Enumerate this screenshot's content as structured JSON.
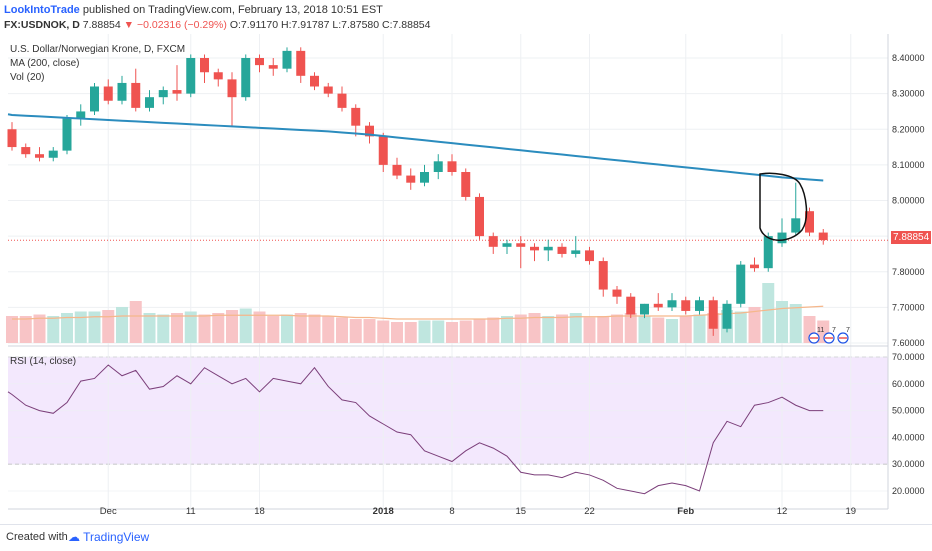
{
  "header": {
    "publisher": "LookIntoTrade",
    "published_text": "published on TradingView.com, February 13, 2018 10:51 EST",
    "symbol": "FX:USDNOK, D",
    "last": "7.88854",
    "change": "−0.02316 (−0.29%)",
    "open": "O:7.91170",
    "high": "H:7.91787",
    "low": "L:7.87580",
    "close": "C:7.88854"
  },
  "legend": {
    "instrument": "U.S. Dollar/Norwegian Krone, D, FXCM",
    "ma": "MA (200, close)",
    "vol": "Vol (20)",
    "rsi": "RSI (14, close)"
  },
  "price_badge": "7.88854",
  "footer": {
    "created_with": "Created with",
    "brand": "TradingView"
  },
  "colors": {
    "up": "#26a69a",
    "down": "#ef5350",
    "ma": "#2b8cbe",
    "rsi": "#7b3f7a",
    "rsi_band": "#f3e8fd"
  },
  "chart_data": [
    {
      "type": "candlestick",
      "title": "U.S. Dollar/Norwegian Krone, D, FXCM",
      "y_ticks": [
        "8.40000",
        "8.30000",
        "8.20000",
        "8.10000",
        "8.00000",
        "7.90000",
        "7.80000",
        "7.70000",
        "7.60000"
      ],
      "x_tick_labels": [
        "Dec",
        "11",
        "18",
        "2018",
        "8",
        "15",
        "22",
        "Feb",
        "12",
        "19"
      ],
      "ylim": [
        7.6,
        8.44
      ],
      "candles": [
        {
          "o": 8.2,
          "h": 8.22,
          "l": 8.14,
          "c": 8.15
        },
        {
          "o": 8.15,
          "h": 8.16,
          "l": 8.12,
          "c": 8.13
        },
        {
          "o": 8.13,
          "h": 8.15,
          "l": 8.11,
          "c": 8.12
        },
        {
          "o": 8.12,
          "h": 8.15,
          "l": 8.11,
          "c": 8.14
        },
        {
          "o": 8.14,
          "h": 8.24,
          "l": 8.13,
          "c": 8.23
        },
        {
          "o": 8.23,
          "h": 8.27,
          "l": 8.21,
          "c": 8.25
        },
        {
          "o": 8.25,
          "h": 8.33,
          "l": 8.24,
          "c": 8.32
        },
        {
          "o": 8.32,
          "h": 8.34,
          "l": 8.27,
          "c": 8.28
        },
        {
          "o": 8.28,
          "h": 8.35,
          "l": 8.27,
          "c": 8.33
        },
        {
          "o": 8.33,
          "h": 8.37,
          "l": 8.25,
          "c": 8.26
        },
        {
          "o": 8.26,
          "h": 8.31,
          "l": 8.25,
          "c": 8.29
        },
        {
          "o": 8.29,
          "h": 8.32,
          "l": 8.27,
          "c": 8.31
        },
        {
          "o": 8.31,
          "h": 8.38,
          "l": 8.28,
          "c": 8.3
        },
        {
          "o": 8.3,
          "h": 8.41,
          "l": 8.29,
          "c": 8.4
        },
        {
          "o": 8.4,
          "h": 8.41,
          "l": 8.33,
          "c": 8.36
        },
        {
          "o": 8.36,
          "h": 8.37,
          "l": 8.32,
          "c": 8.34
        },
        {
          "o": 8.34,
          "h": 8.36,
          "l": 8.21,
          "c": 8.29
        },
        {
          "o": 8.29,
          "h": 8.41,
          "l": 8.28,
          "c": 8.4
        },
        {
          "o": 8.4,
          "h": 8.41,
          "l": 8.36,
          "c": 8.38
        },
        {
          "o": 8.38,
          "h": 8.4,
          "l": 8.35,
          "c": 8.37
        },
        {
          "o": 8.37,
          "h": 8.43,
          "l": 8.36,
          "c": 8.42
        },
        {
          "o": 8.42,
          "h": 8.43,
          "l": 8.33,
          "c": 8.35
        },
        {
          "o": 8.35,
          "h": 8.36,
          "l": 8.31,
          "c": 8.32
        },
        {
          "o": 8.32,
          "h": 8.33,
          "l": 8.29,
          "c": 8.3
        },
        {
          "o": 8.3,
          "h": 8.32,
          "l": 8.25,
          "c": 8.26
        },
        {
          "o": 8.26,
          "h": 8.27,
          "l": 8.18,
          "c": 8.21
        },
        {
          "o": 8.21,
          "h": 8.22,
          "l": 8.16,
          "c": 8.18
        },
        {
          "o": 8.18,
          "h": 8.19,
          "l": 8.08,
          "c": 8.1
        },
        {
          "o": 8.1,
          "h": 8.12,
          "l": 8.06,
          "c": 8.07
        },
        {
          "o": 8.07,
          "h": 8.09,
          "l": 8.03,
          "c": 8.05
        },
        {
          "o": 8.05,
          "h": 8.1,
          "l": 8.04,
          "c": 8.08
        },
        {
          "o": 8.08,
          "h": 8.13,
          "l": 8.06,
          "c": 8.11
        },
        {
          "o": 8.11,
          "h": 8.13,
          "l": 8.07,
          "c": 8.08
        },
        {
          "o": 8.08,
          "h": 8.09,
          "l": 8.0,
          "c": 8.01
        },
        {
          "o": 8.01,
          "h": 8.02,
          "l": 7.89,
          "c": 7.9
        },
        {
          "o": 7.9,
          "h": 7.91,
          "l": 7.85,
          "c": 7.87
        },
        {
          "o": 7.87,
          "h": 7.89,
          "l": 7.85,
          "c": 7.88
        },
        {
          "o": 7.88,
          "h": 7.9,
          "l": 7.81,
          "c": 7.87
        },
        {
          "o": 7.87,
          "h": 7.88,
          "l": 7.83,
          "c": 7.86
        },
        {
          "o": 7.86,
          "h": 7.89,
          "l": 7.83,
          "c": 7.87
        },
        {
          "o": 7.87,
          "h": 7.88,
          "l": 7.84,
          "c": 7.85
        },
        {
          "o": 7.85,
          "h": 7.9,
          "l": 7.84,
          "c": 7.86
        },
        {
          "o": 7.86,
          "h": 7.87,
          "l": 7.82,
          "c": 7.83
        },
        {
          "o": 7.83,
          "h": 7.84,
          "l": 7.73,
          "c": 7.75
        },
        {
          "o": 7.75,
          "h": 7.76,
          "l": 7.71,
          "c": 7.73
        },
        {
          "o": 7.73,
          "h": 7.74,
          "l": 7.67,
          "c": 7.68
        },
        {
          "o": 7.68,
          "h": 7.71,
          "l": 7.67,
          "c": 7.71
        },
        {
          "o": 7.71,
          "h": 7.74,
          "l": 7.69,
          "c": 7.7
        },
        {
          "o": 7.7,
          "h": 7.74,
          "l": 7.69,
          "c": 7.72
        },
        {
          "o": 7.72,
          "h": 7.73,
          "l": 7.68,
          "c": 7.69
        },
        {
          "o": 7.69,
          "h": 7.73,
          "l": 7.68,
          "c": 7.72
        },
        {
          "o": 7.72,
          "h": 7.73,
          "l": 7.62,
          "c": 7.64
        },
        {
          "o": 7.64,
          "h": 7.72,
          "l": 7.63,
          "c": 7.71
        },
        {
          "o": 7.71,
          "h": 7.83,
          "l": 7.7,
          "c": 7.82
        },
        {
          "o": 7.82,
          "h": 7.84,
          "l": 7.8,
          "c": 7.81
        },
        {
          "o": 7.81,
          "h": 7.91,
          "l": 7.8,
          "c": 7.9
        },
        {
          "o": 7.88,
          "h": 7.95,
          "l": 7.87,
          "c": 7.91
        },
        {
          "o": 7.91,
          "h": 8.05,
          "l": 7.9,
          "c": 7.95
        },
        {
          "o": 7.97,
          "h": 7.98,
          "l": 7.9,
          "c": 7.91
        },
        {
          "o": 7.91,
          "h": 7.92,
          "l": 7.876,
          "c": 7.889
        }
      ],
      "ma200": [
        8.24,
        8.238,
        8.236,
        8.234,
        8.232,
        8.23,
        8.228,
        8.226,
        8.224,
        8.222,
        8.22,
        8.218,
        8.216,
        8.214,
        8.212,
        8.21,
        8.208,
        8.206,
        8.204,
        8.202,
        8.2,
        8.198,
        8.196,
        8.194,
        8.191,
        8.188,
        8.185,
        8.181,
        8.177,
        8.173,
        8.169,
        8.165,
        8.161,
        8.157,
        8.153,
        8.149,
        8.145,
        8.141,
        8.137,
        8.133,
        8.129,
        8.125,
        8.121,
        8.117,
        8.113,
        8.109,
        8.105,
        8.101,
        8.097,
        8.093,
        8.089,
        8.085,
        8.081,
        8.077,
        8.073,
        8.069,
        8.065,
        8.062,
        8.059,
        8.056
      ],
      "volume": [
        18,
        18,
        19,
        18,
        20,
        21,
        21,
        22,
        24,
        28,
        20,
        19,
        20,
        21,
        19,
        20,
        22,
        23,
        21,
        18,
        19,
        20,
        19,
        18,
        17,
        16,
        16,
        15,
        14,
        14,
        15,
        15,
        14,
        15,
        16,
        17,
        18,
        19,
        20,
        18,
        19,
        20,
        17,
        18,
        19,
        20,
        18,
        17,
        16,
        18,
        19,
        20,
        22,
        21,
        24,
        40,
        28,
        26,
        18,
        15
      ],
      "volume_ma": [
        16,
        16,
        16.5,
        16.5,
        17,
        17,
        17.5,
        17.5,
        18,
        18,
        18,
        18,
        18,
        18,
        18,
        18.5,
        18.5,
        18.5,
        18.5,
        18.5,
        18.5,
        18,
        18,
        18,
        17.5,
        17,
        17,
        16.5,
        16,
        16,
        16,
        16,
        16,
        16,
        16,
        16,
        16.5,
        16.5,
        17,
        17,
        17,
        17.5,
        17.5,
        17.5,
        18,
        18,
        18,
        18,
        18,
        18,
        18.5,
        19,
        19.5,
        20,
        21,
        22,
        23,
        23.5,
        24,
        24.5
      ]
    },
    {
      "type": "line",
      "title": "RSI (14, close)",
      "y_ticks": [
        "70.0000",
        "60.0000",
        "50.0000",
        "40.0000",
        "30.0000",
        "20.0000"
      ],
      "ylim": [
        15,
        71
      ],
      "band": [
        30,
        70
      ],
      "values": [
        56,
        52,
        50,
        49,
        53,
        61,
        62,
        67,
        63,
        65,
        58,
        59,
        63,
        60,
        66,
        63,
        60,
        62,
        57,
        62,
        61,
        60,
        66,
        59,
        54,
        53,
        48,
        45,
        42,
        41,
        35,
        33,
        31,
        35,
        38,
        36,
        33,
        27,
        26,
        26,
        25,
        27,
        26,
        24,
        21,
        20,
        19,
        22,
        23,
        22,
        20,
        38,
        46,
        44,
        52,
        53,
        55,
        52,
        50,
        50
      ]
    }
  ]
}
